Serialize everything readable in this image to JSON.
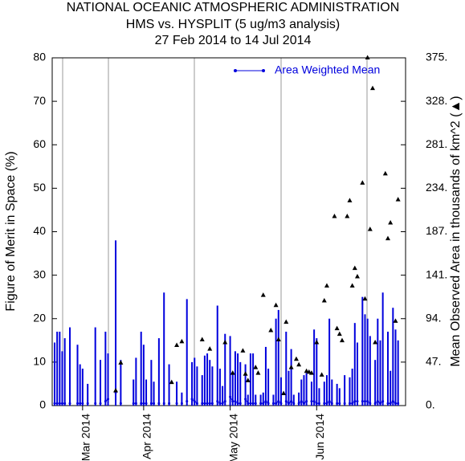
{
  "chart_data": {
    "type": "bar",
    "title": "NATIONAL OCEANIC ATMOSPHERIC ADMINISTRATION",
    "subtitle": "HMS vs. HYSPLIT (5 ug/m3 analysis)",
    "date_range": "27 Feb 2014 to 14 Jul 2014",
    "y_label": "Figure of Merit in Space (%)",
    "y2_label": "Mean Observed Area in thousands of km^2 (▲)",
    "ylim": [
      0,
      80
    ],
    "yticks": [
      0,
      10,
      20,
      30,
      40,
      50,
      60,
      70,
      80
    ],
    "y2lim": [
      0,
      375
    ],
    "y2ticks": [
      {
        "value": 0,
        "label": "0."
      },
      {
        "value": 46.875,
        "label": "47."
      },
      {
        "value": 93.75,
        "label": "94."
      },
      {
        "value": 140.625,
        "label": "141."
      },
      {
        "value": 187.5,
        "label": "187."
      },
      {
        "value": 234.375,
        "label": "234."
      },
      {
        "value": 281.25,
        "label": "281."
      },
      {
        "value": 328.125,
        "label": "328."
      },
      {
        "value": 375,
        "label": "375."
      }
    ],
    "legend": "upper right",
    "categories": [
      null,
      null,
      null,
      null,
      null,
      null,
      null,
      null,
      null,
      null,
      null,
      "Mar 2014",
      null,
      null,
      null,
      null,
      null,
      null,
      null,
      null,
      null,
      null,
      null,
      null,
      null,
      null,
      null,
      null,
      null,
      null,
      null,
      null,
      null,
      null,
      null,
      "Apr 2014",
      null,
      null,
      null,
      null,
      null,
      null,
      null,
      null,
      null,
      null,
      null,
      null,
      null,
      null,
      null,
      null,
      null,
      null,
      null,
      null,
      null,
      null,
      null,
      null,
      null,
      null,
      null,
      null,
      null,
      null,
      null,
      null,
      null,
      "May 2014",
      null,
      null,
      null,
      null,
      null,
      null,
      null,
      null,
      null,
      null,
      null,
      null,
      null,
      null,
      null,
      null,
      null,
      null,
      null,
      null,
      null,
      null,
      null,
      null,
      null,
      null,
      null,
      null,
      null,
      null,
      null,
      null,
      null,
      "Jun 2014",
      null,
      null,
      null,
      null,
      null,
      null,
      null,
      null,
      null,
      null,
      null,
      null,
      null,
      null,
      null,
      null,
      null,
      null,
      null,
      null,
      null,
      null,
      null,
      null,
      null,
      null,
      null,
      null,
      null,
      null,
      null,
      null,
      null,
      null
    ],
    "bars": {
      "color": "#0000dd",
      "values": [
        14.5,
        17,
        17,
        12.5,
        15.5,
        null,
        18,
        null,
        null,
        14,
        9.5,
        8.5,
        null,
        5,
        null,
        null,
        18,
        null,
        10.5,
        null,
        17,
        12,
        null,
        null,
        38,
        null,
        10.5,
        null,
        null,
        null,
        null,
        6,
        11,
        null,
        17,
        14,
        6,
        null,
        10.5,
        5.5,
        null,
        15.5,
        null,
        26,
        null,
        9.5,
        null,
        null,
        5.5,
        null,
        3,
        null,
        24.5,
        null,
        10,
        11,
        9,
        null,
        7,
        11.5,
        12,
        10.5,
        9,
        null,
        23,
        8.5,
        4.5,
        16.5,
        null,
        16,
        7.5,
        12.5,
        12,
        10,
        null,
        9.5,
        2.5,
        12,
        12,
        2.5,
        null,
        2.5,
        3,
        13.5,
        8.5,
        null,
        2.5,
        20,
        22,
        6.5,
        null,
        17,
        8,
        13,
        2.5,
        null,
        3,
        6,
        7,
        7.5,
        null,
        5.5,
        17.5,
        15.5,
        4,
        null,
        5.5,
        7,
        20,
        6,
        null,
        5,
        4,
        null,
        7,
        null,
        6.5,
        8.5,
        19,
        14.5,
        null,
        25,
        21,
        20,
        16,
        null,
        10.5,
        20,
        15,
        26,
        null,
        17,
        8,
        22.5,
        17.5,
        15,
        null,
        null
      ]
    },
    "triangles": {
      "color": "#000000",
      "axis": "y2",
      "values": [
        null,
        null,
        null,
        null,
        null,
        null,
        null,
        null,
        null,
        null,
        null,
        null,
        null,
        null,
        null,
        null,
        null,
        null,
        null,
        null,
        null,
        null,
        null,
        null,
        16,
        null,
        46,
        null,
        null,
        null,
        null,
        null,
        null,
        null,
        null,
        null,
        null,
        null,
        null,
        null,
        null,
        null,
        null,
        null,
        null,
        null,
        25,
        null,
        65,
        null,
        69,
        null,
        null,
        null,
        null,
        null,
        null,
        null,
        71,
        null,
        null,
        61,
        null,
        null,
        null,
        null,
        null,
        68,
        null,
        null,
        35,
        null,
        null,
        null,
        59,
        34,
        27,
        null,
        null,
        41,
        35,
        null,
        119,
        null,
        null,
        81,
        null,
        108,
        71,
        null,
        13,
        90,
        null,
        41,
        null,
        50,
        44,
        null,
        null,
        37,
        36,
        35,
        null,
        68,
        null,
        33,
        113,
        129,
        null,
        null,
        204,
        83,
        77,
        70,
        null,
        204,
        221,
        129,
        148,
        139,
        null,
        240,
        115,
        375,
        190,
        342,
        68,
        null,
        null,
        null,
        250,
        180,
        197,
        null,
        91,
        222,
        null,
        null
      ]
    },
    "series": [
      {
        "name": "Area Weighted Mean",
        "color": "#0000dd",
        "values": [
          0.5,
          0.5,
          0.5,
          0.5,
          0.5,
          null,
          0.5,
          null,
          null,
          0.5,
          0.5,
          0.5,
          null,
          0.5,
          null,
          null,
          0.5,
          null,
          0.5,
          null,
          1,
          1.5,
          null,
          null,
          3,
          null,
          0.5,
          null,
          null,
          null,
          null,
          0.5,
          0.5,
          null,
          0.5,
          0.5,
          0.5,
          null,
          0.5,
          0.5,
          null,
          0.5,
          null,
          0.5,
          null,
          0.5,
          null,
          null,
          0.5,
          null,
          0.5,
          null,
          1,
          null,
          1.5,
          1,
          0.5,
          null,
          0.5,
          0.5,
          0.5,
          0.5,
          0.5,
          null,
          1,
          0.5,
          0.5,
          1,
          null,
          2,
          1,
          1,
          0.5,
          0.5,
          null,
          1.5,
          0.5,
          0.5,
          0.5,
          0.5,
          null,
          0.5,
          0.5,
          1,
          0.5,
          null,
          0.5,
          0.5,
          1,
          0.5,
          null,
          1,
          0.5,
          1,
          0.5,
          null,
          0.5,
          1,
          0.5,
          1,
          null,
          1,
          1,
          0.5,
          0.5,
          null,
          0.5,
          0.5,
          1,
          0.5,
          null,
          0.5,
          0.5,
          null,
          0.5,
          null,
          0.5,
          0.5,
          1,
          1,
          null,
          1,
          1,
          1,
          0.5,
          null,
          0.5,
          1,
          0.5,
          1,
          null,
          0.5,
          0.5,
          1,
          0.5,
          0.5,
          null,
          null
        ]
      }
    ]
  }
}
